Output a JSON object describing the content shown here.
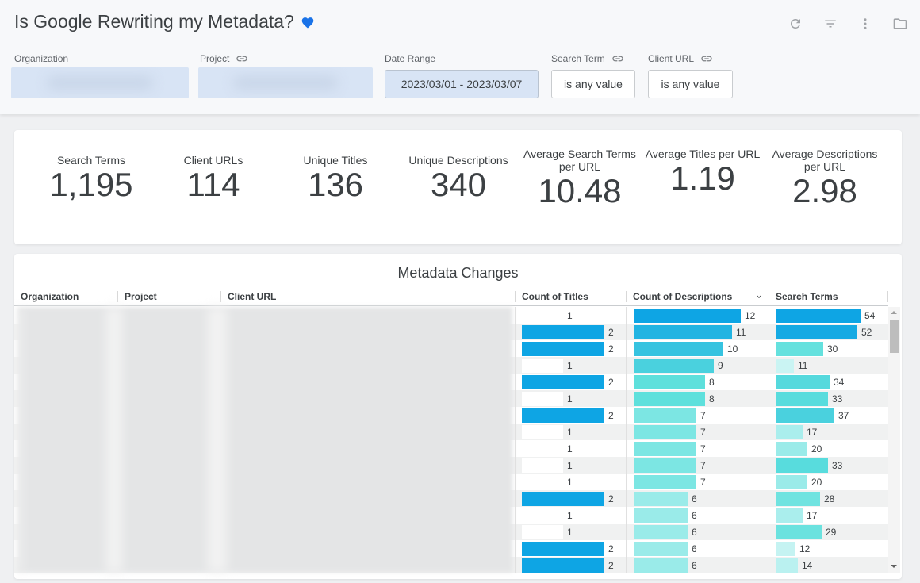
{
  "header": {
    "title": "Is Google Rewriting my Metadata?",
    "title_icon": "heart-icon",
    "accent_color": "#1a73e8",
    "toolbar": [
      {
        "name": "refresh-icon",
        "label": "Refresh"
      },
      {
        "name": "filter-icon",
        "label": "Filter"
      },
      {
        "name": "more-vert-icon",
        "label": "More options"
      },
      {
        "name": "folder-icon",
        "label": "Folder"
      }
    ]
  },
  "filters": {
    "organization": {
      "label": "Organization",
      "value": ""
    },
    "project": {
      "label": "Project",
      "value": "",
      "icon": "link-icon"
    },
    "date_range": {
      "label": "Date Range",
      "value": "2023/03/01 - 2023/03/07"
    },
    "search_term": {
      "label": "Search Term",
      "value": "is any value",
      "icon": "link-icon"
    },
    "client_url": {
      "label": "Client URL",
      "value": "is any value",
      "icon": "link-icon"
    }
  },
  "kpis": [
    {
      "label": "Search Terms",
      "value": "1,195"
    },
    {
      "label": "Client URLs",
      "value": "114"
    },
    {
      "label": "Unique Titles",
      "value": "136"
    },
    {
      "label": "Unique Descriptions",
      "value": "340"
    },
    {
      "label": "Average Search Terms per URL",
      "value": "10.48"
    },
    {
      "label": "Average Titles per URL",
      "value": "1.19"
    },
    {
      "label": "Average Descriptions per URL",
      "value": "2.98"
    }
  ],
  "table": {
    "title": "Metadata Changes",
    "columns": [
      "Organization",
      "Project",
      "Client URL",
      "Count of Titles",
      "Count of Descriptions",
      "Search Terms"
    ],
    "sorted_column": "Count of Descriptions",
    "sort_direction": "descending",
    "color_scale": {
      "low": "#ffffff",
      "mid": "#5ee0dc",
      "high": "#0ea5e4"
    },
    "rows": [
      {
        "titles": 1,
        "descriptions": 12,
        "search_terms": 54
      },
      {
        "titles": 2,
        "descriptions": 11,
        "search_terms": 52
      },
      {
        "titles": 2,
        "descriptions": 10,
        "search_terms": 30
      },
      {
        "titles": 1,
        "descriptions": 9,
        "search_terms": 11
      },
      {
        "titles": 2,
        "descriptions": 8,
        "search_terms": 34
      },
      {
        "titles": 1,
        "descriptions": 8,
        "search_terms": 33
      },
      {
        "titles": 2,
        "descriptions": 7,
        "search_terms": 37
      },
      {
        "titles": 1,
        "descriptions": 7,
        "search_terms": 17
      },
      {
        "titles": 1,
        "descriptions": 7,
        "search_terms": 20
      },
      {
        "titles": 1,
        "descriptions": 7,
        "search_terms": 33
      },
      {
        "titles": 1,
        "descriptions": 7,
        "search_terms": 20
      },
      {
        "titles": 2,
        "descriptions": 6,
        "search_terms": 28
      },
      {
        "titles": 1,
        "descriptions": 6,
        "search_terms": 17
      },
      {
        "titles": 1,
        "descriptions": 6,
        "search_terms": 29
      },
      {
        "titles": 2,
        "descriptions": 6,
        "search_terms": 12
      },
      {
        "titles": 2,
        "descriptions": 6,
        "search_terms": 14
      }
    ]
  }
}
